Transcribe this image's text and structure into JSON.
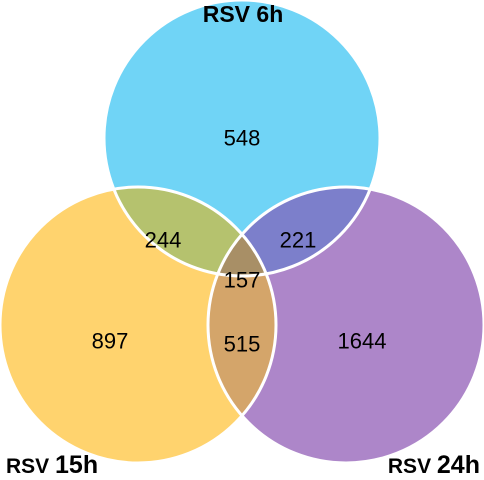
{
  "sets": [
    {
      "label_main": "RSV ",
      "label_time": "6h",
      "color": "#70d4f6"
    },
    {
      "label_main": "RSV ",
      "label_time": "15h",
      "color": "#ffd36e"
    },
    {
      "label_main": "RSV ",
      "label_time": "24h",
      "color": "#ad86c9"
    }
  ],
  "regions": {
    "only_6h": "548",
    "only_15h": "897",
    "only_24h": "1644",
    "6h_15h": "244",
    "6h_24h": "221",
    "15h_24h": "515",
    "all": "157"
  },
  "colors": {
    "overlap_6h_15h": "#b5c26e",
    "overlap_6h_24h": "#7c7fcb",
    "overlap_15h_24h": "#d4a56a",
    "overlap_all": "#a88f66",
    "outline": "#ffffff"
  }
}
